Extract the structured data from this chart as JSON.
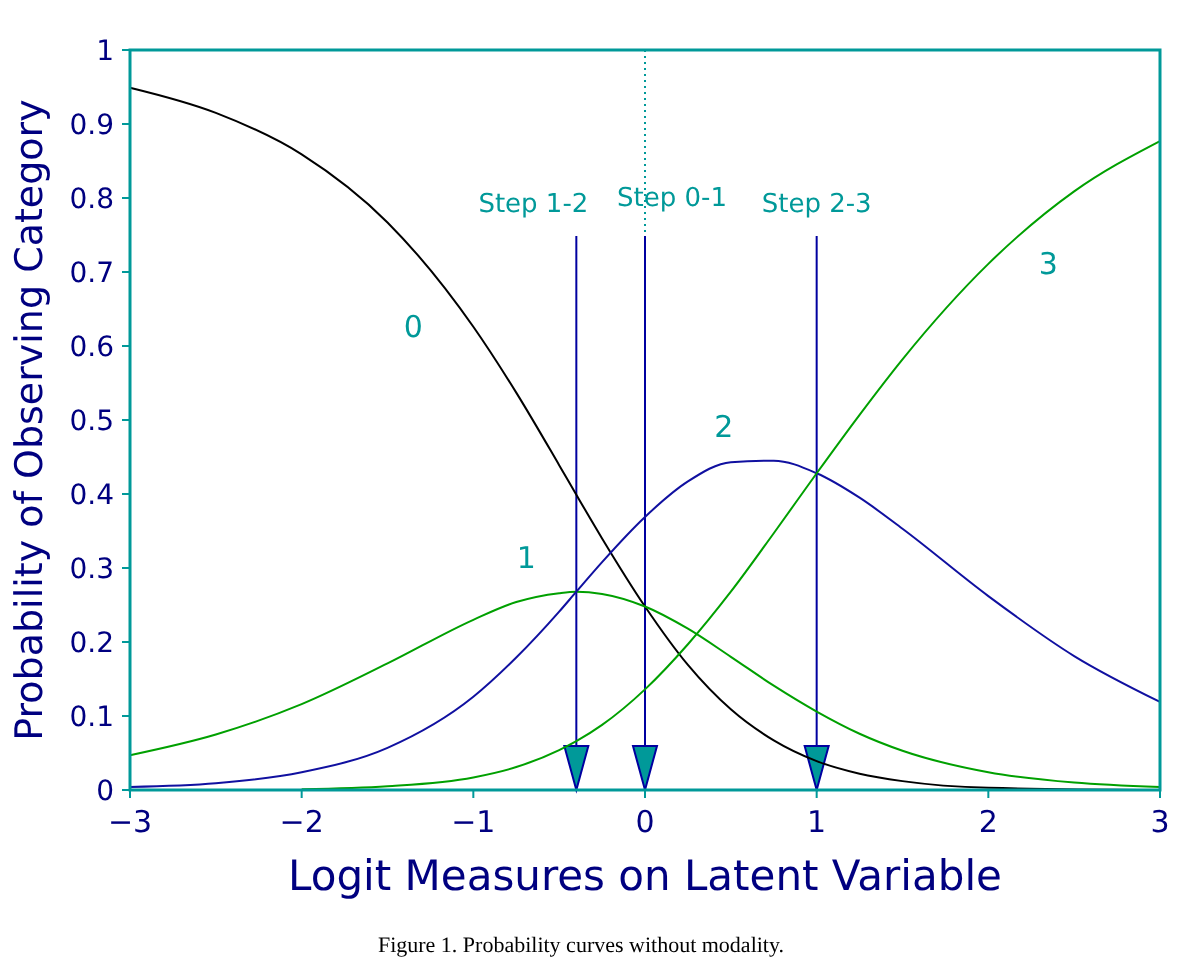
{
  "chart_data": {
    "type": "line",
    "xlabel": "Logit Measures on Latent Variable",
    "ylabel": "Probability of Observing Category",
    "x": [
      -3,
      -2.5,
      -2,
      -1.5,
      -1,
      -0.75,
      -0.5,
      -0.4,
      -0.25,
      0,
      0.25,
      0.5,
      0.75,
      1,
      1.25,
      1.5,
      2,
      2.5,
      3
    ],
    "series": [
      {
        "name": "0",
        "color": "#000000",
        "values": [
          0.949,
          0.915,
          0.859,
          0.767,
          0.626,
          0.537,
          0.439,
          0.399,
          0.34,
          0.248,
          0.169,
          0.109,
          0.067,
          0.039,
          0.022,
          0.012,
          0.003,
          null,
          0
        ]
      },
      {
        "name": "1",
        "color": "#00a000",
        "values": [
          0.047,
          0.075,
          0.116,
          0.171,
          0.23,
          0.254,
          0.266,
          0.268,
          0.265,
          0.248,
          0.218,
          0.18,
          0.141,
          0.106,
          0.076,
          0.053,
          0.024,
          0.01,
          0.004
        ]
      },
      {
        "name": "2",
        "color": "#1010a0",
        "values": [
          0.004,
          0.009,
          0.024,
          0.057,
          0.126,
          0.179,
          0.241,
          0.268,
          0.308,
          0.369,
          0.417,
          0.443,
          0.445,
          0.428,
          0.395,
          0.353,
          0.262,
          0.181,
          0.119
        ]
      },
      {
        "name": "3",
        "color": "#00a000",
        "values": [
          null,
          null,
          0.001,
          0.005,
          0.017,
          0.031,
          0.054,
          0.066,
          0.088,
          0.136,
          0.197,
          0.268,
          0.347,
          0.428,
          0.507,
          0.582,
          0.711,
          0.809,
          0.877
        ]
      }
    ],
    "xlim": [
      -3,
      3
    ],
    "ylim": [
      0,
      1
    ],
    "xticks": [
      {
        "value": -3,
        "label": "−3"
      },
      {
        "value": -2,
        "label": "−2"
      },
      {
        "value": -1,
        "label": "−1"
      },
      0,
      1,
      2,
      3
    ],
    "yticks": [
      0,
      0.1,
      0.2,
      0.3,
      0.4,
      0.5,
      0.6,
      0.7,
      0.8,
      0.9,
      1
    ],
    "grid": false,
    "marker": "none",
    "line_style": "solid",
    "ref_lines": [
      {
        "axis": "x",
        "value": 0,
        "color": "#009999",
        "line_style": "dotted"
      },
      {
        "axis": "x",
        "value": -0.4,
        "label": "Step 1-2",
        "color": "#0000a0"
      },
      {
        "axis": "x",
        "value": 0,
        "label": "Step 0-1",
        "color": "#0000a0"
      },
      {
        "axis": "x",
        "value": 1,
        "label": "Step 2-3",
        "color": "#0000a0"
      }
    ],
    "annotations": [
      "Figure 1. Probability curves without modality."
    ]
  }
}
